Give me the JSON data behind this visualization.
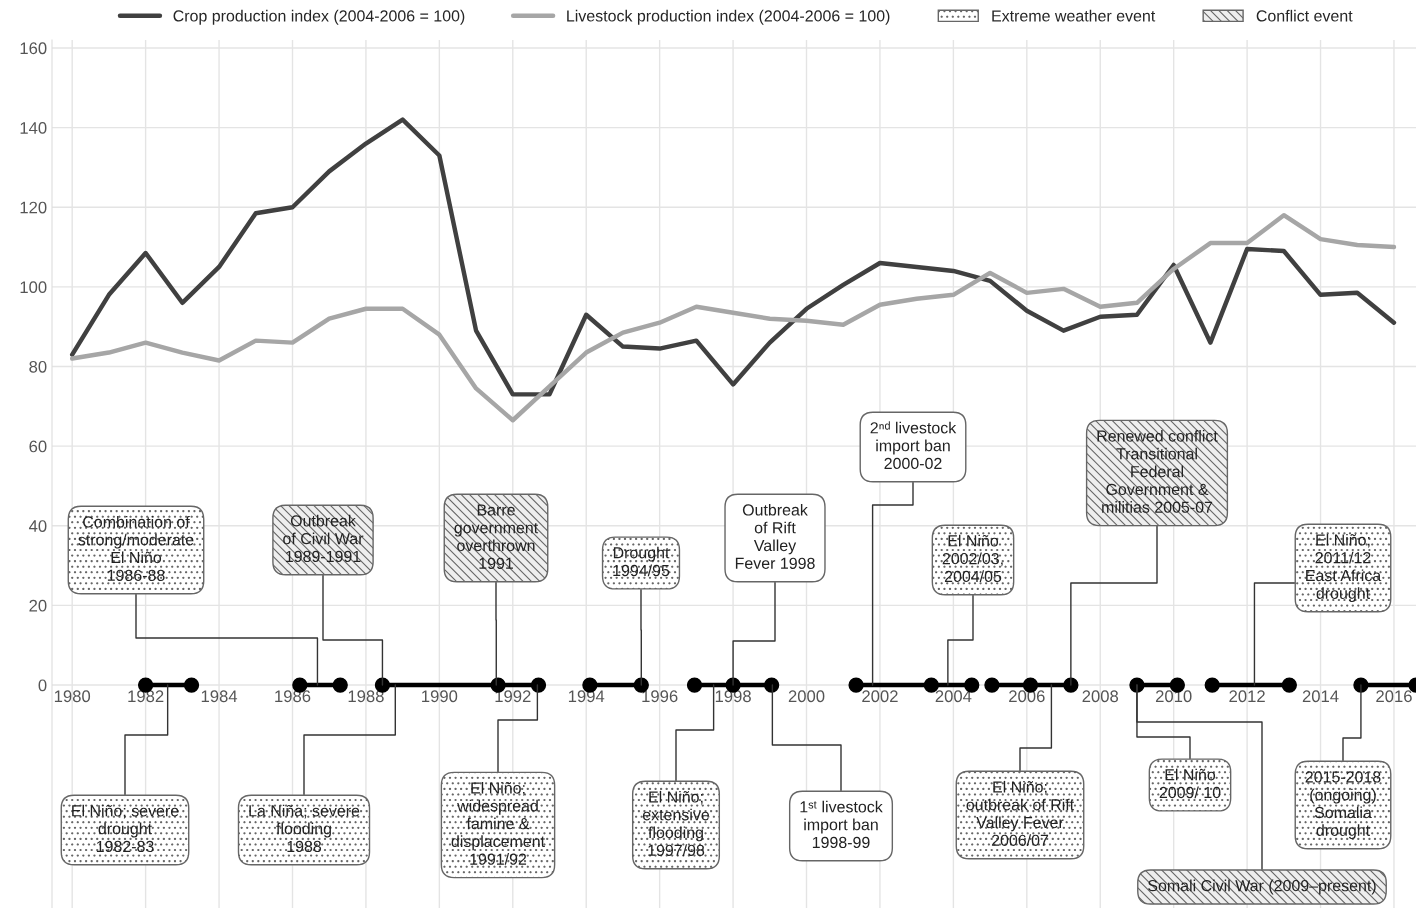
{
  "chart_data": {
    "type": "line",
    "x": [
      1980,
      1981,
      1982,
      1983,
      1984,
      1985,
      1986,
      1987,
      1988,
      1989,
      1990,
      1991,
      1992,
      1993,
      1994,
      1995,
      1996,
      1997,
      1998,
      1999,
      2000,
      2001,
      2002,
      2003,
      2004,
      2005,
      2006,
      2007,
      2008,
      2009,
      2010,
      2011,
      2012,
      2013,
      2014,
      2015,
      2016
    ],
    "series": [
      {
        "name": "Crop production index (2004-2006 = 100)",
        "color": "#404040",
        "values": [
          83,
          98,
          108.5,
          96,
          105,
          118.5,
          120,
          129,
          136,
          142,
          133,
          89,
          73,
          73,
          93,
          85,
          84.5,
          86.5,
          75.5,
          86,
          94.5,
          100.5,
          106,
          105,
          104,
          101.5,
          94,
          89,
          92.5,
          93,
          105.5,
          86,
          109.5,
          109,
          98,
          98.5,
          91
        ]
      },
      {
        "name": "Livestock production index (2004-2006 = 100)",
        "color": "#a6a6a6",
        "values": [
          82,
          83.5,
          86,
          83.5,
          81.5,
          86.5,
          86,
          92,
          94.5,
          94.5,
          88,
          74.5,
          66.5,
          75,
          83.5,
          88.5,
          91,
          95,
          93.5,
          92,
          91.5,
          90.5,
          95.5,
          97,
          98,
          103.5,
          98.5,
          99.5,
          95,
          96,
          104.5,
          111,
          111,
          118,
          112,
          110.5,
          110
        ]
      },
      {
        "type": "line",
        "color": "#000000",
        "marker": "circle",
        "x": [
          1982.0,
          1983.25,
          1985,
          1986.2,
          1987.3,
          1988,
          1988.45,
          1991.6,
          1992.7,
          1993.5,
          1994.1,
          1995.5,
          1996.5,
          1996.95,
          1998.0,
          1999.05,
          2000.5,
          2001.35,
          2003.4,
          2004.5,
          2004.8,
          2005.05,
          2006.1,
          2007.2,
          2008,
          2009.0,
          2010.1,
          2010.5,
          2011.05,
          2013.15,
          2014,
          2015.1,
          2016.6
        ],
        "values": [
          0,
          0,
          null,
          0,
          0,
          null,
          0,
          0,
          0,
          null,
          0,
          0,
          null,
          0,
          0,
          0,
          null,
          0,
          0,
          0,
          null,
          0,
          0,
          0,
          null,
          0,
          0,
          null,
          0,
          0,
          null,
          0,
          0
        ]
      }
    ],
    "xlim": [
      1979.45,
      2016.6
    ],
    "ylim": [
      -56,
      162
    ],
    "xticks": [
      1980,
      1982,
      1984,
      1986,
      1988,
      1990,
      1992,
      1994,
      1996,
      1998,
      2000,
      2002,
      2004,
      2006,
      2008,
      2010,
      2012,
      2014,
      2016
    ],
    "yticks": [
      0,
      20,
      40,
      60,
      80,
      100,
      120,
      140,
      160
    ],
    "grid": true,
    "legend": "top",
    "annotations": [
      "Extreme weather event",
      "Conflict event",
      {
        "text": "Combination of\nstrong/moderate\nEl Niño\n1986-88",
        "x": 1986.68,
        "y": 0
      },
      {
        "text": "Outbreak\nof Civil War\n1989-1991",
        "x": 1988.45,
        "y": 0
      },
      {
        "text": "Barre\ngovernment\noverthrown\n1991",
        "x": 1991.55,
        "y": 0
      },
      {
        "text": "Drought\n1994/95",
        "x": 1995.5,
        "y": 0
      },
      {
        "text": "Outbreak\nof Rift\nValley\nFever 1998",
        "x": 1998.0,
        "y": 0
      },
      {
        "text": "2ⁿᵈ livestock\nimport ban\n2000-02",
        "x": 2001.8,
        "y": 0
      },
      {
        "text": "El Niño\n2002/03,\n2004/05",
        "x": 2003.85,
        "y": 0
      },
      {
        "text": "Renewed conflict\nTransitional\nFederal\nGovernment &\nmilitias 2005-07",
        "x": 2007.2,
        "y": 0
      },
      {
        "text": "El Niño;\n2011/12\nEast Africa\ndrought",
        "x": 2012.2,
        "y": 0
      },
      {
        "text": "El Niño; severe\ndrought\n1982-83",
        "x": 1982.6,
        "y": 0
      },
      {
        "text": "La Niña; severe\nflooding\n1988",
        "x": 1988.8,
        "y": 0
      },
      {
        "text": "El Niño;\nwidespread\nfamine &\ndisplacement\n1991/92",
        "x": 1992.67,
        "y": 0
      },
      {
        "text": "El Niño;\nextensive\nflooding\n1997/98",
        "x": 1997.47,
        "y": 0
      },
      {
        "text": "1ˢᵗ livestock\nimport ban\n1998-99",
        "x": 1999.07,
        "y": 0
      },
      {
        "text": "El Niño;\noutbreak of Rift\nValley Fever\n2006/07",
        "x": 2006.67,
        "y": 0
      },
      {
        "text": "El Niño\n2009/ 10",
        "x": 2009.0,
        "y": 0
      },
      {
        "text": "2015-2018\n(ongoing)\nSomalia\ndrought",
        "x": 2015.1,
        "y": 0
      },
      {
        "text": "Somali Civil War (2009–present)",
        "x": 2009.0,
        "y": 0
      }
    ]
  }
}
